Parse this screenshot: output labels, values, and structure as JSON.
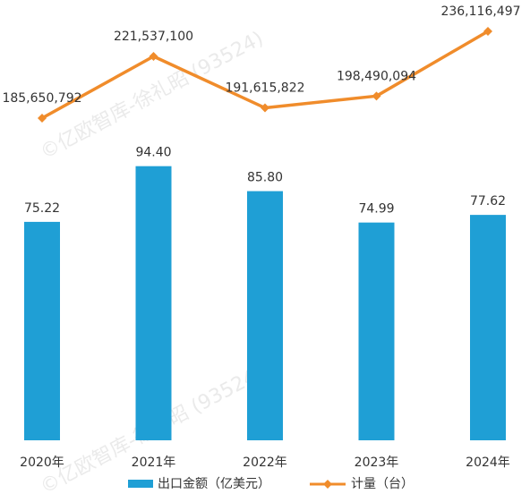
{
  "watermark": "©亿欧智库-徐礼昭 (93524)",
  "chart_data": {
    "type": "bar",
    "categories": [
      "2020年",
      "2021年",
      "2022年",
      "2023年",
      "2024年"
    ],
    "series": [
      {
        "name": "出口金额（亿美元）",
        "type": "bar",
        "values": [
          75.22,
          94.4,
          85.8,
          74.99,
          77.62
        ],
        "labels": [
          "75.22",
          "94.40",
          "85.80",
          "74.99",
          "77.62"
        ],
        "color": "#1f9fd5"
      },
      {
        "name": "计量（台）",
        "type": "line",
        "values": [
          185650792,
          221537100,
          191615822,
          198490094,
          236116497
        ],
        "labels": [
          "185,650,792",
          "221,537,100",
          "191,615,822",
          "198,490,094",
          "236,116,497"
        ],
        "color": "#f08c2b"
      }
    ],
    "legend_position": "bottom",
    "grid": false
  }
}
